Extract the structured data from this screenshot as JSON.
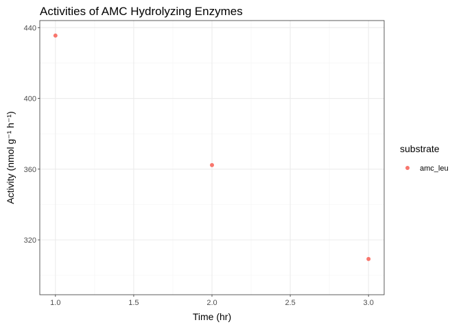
{
  "chart_data": {
    "type": "scatter",
    "title": "Activities of AMC Hydrolyzing Enzymes",
    "xlabel": "Time (hr)",
    "ylabel": "Activity (nmol g⁻¹ h⁻¹)",
    "xlim": [
      0.9,
      3.1
    ],
    "ylim": [
      289,
      444
    ],
    "x_ticks": [
      1.0,
      1.5,
      2.0,
      2.5,
      3.0
    ],
    "x_tick_labels": [
      "1.0",
      "1.5",
      "2.0",
      "2.5",
      "3.0"
    ],
    "y_ticks": [
      320,
      360,
      400,
      440
    ],
    "y_tick_labels": [
      "320",
      "360",
      "400",
      "440"
    ],
    "grid": true,
    "legend": {
      "title": "substrate",
      "position": "right"
    },
    "series": [
      {
        "name": "amc_leu",
        "color": "#F8766D",
        "points": [
          {
            "x": 1.0,
            "y": 435.5
          },
          {
            "x": 2.0,
            "y": 362.3
          },
          {
            "x": 3.0,
            "y": 309.2
          }
        ]
      }
    ]
  }
}
